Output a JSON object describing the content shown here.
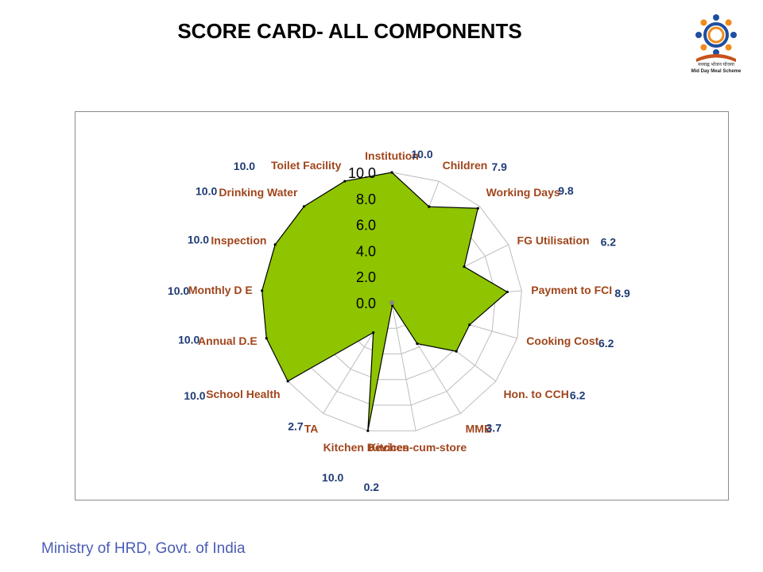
{
  "title": "SCORE CARD- ALL COMPONENTS",
  "logo": {
    "caption_line1": "मध्याह्न भोजन योजना",
    "caption_line2": "Mid Day Meal Scheme",
    "icon": "mdm-logo"
  },
  "footer": "Ministry of HRD, Govt. of India",
  "colors": {
    "fill": "#8ec400",
    "axis_label": "#a0451c",
    "value_label": "#1f3b74",
    "grid": "#bdbdbd"
  },
  "chart_data": {
    "type": "radar",
    "title": "SCORE CARD- ALL COMPONENTS",
    "categories": [
      "Institution",
      "Children",
      "Working Days",
      "FG Utilisation",
      "Payment to FCI",
      "Cooking Cost",
      "Hon. to CCH",
      "MME",
      "Kitchen-cum-store",
      "Kitchen Devices",
      "TA",
      "School Health",
      "Annual D.E",
      "Monthly D E",
      "Inspection",
      "Drinking Water",
      "Toilet Facility"
    ],
    "values": [
      10.0,
      7.9,
      9.8,
      6.2,
      8.9,
      6.2,
      6.2,
      3.7,
      0.2,
      10.0,
      2.7,
      10.0,
      10.0,
      10.0,
      10.0,
      10.0,
      10.0
    ],
    "value_labels": [
      "10.0",
      "7.9",
      "9.8",
      "6.2",
      "8.9",
      "6.2",
      "6.2",
      "3.7",
      "0.2",
      "10.0",
      "2.7",
      "10.0",
      "10.0",
      "10.0",
      "10.0",
      "10.0",
      "10.0"
    ],
    "rlim": [
      0,
      10
    ],
    "ticks": [
      "0.0",
      "2.0",
      "4.0",
      "6.0",
      "8.0",
      "10.0"
    ],
    "grid": true,
    "legend": "none"
  }
}
